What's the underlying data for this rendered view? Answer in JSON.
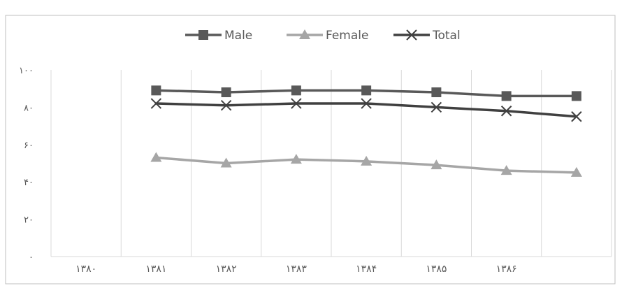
{
  "chart_data": {
    "type": "line",
    "title": "",
    "xlabel": "",
    "ylabel": "",
    "categories": [
      "۱۳۸۰",
      "۱۳۸۱",
      "۱۳۸۲",
      "۱۳۸۳",
      "۱۳۸۴",
      "۱۳۸۵",
      "۱۳۸۶",
      ""
    ],
    "yticks": [
      "۰",
      "۲۰",
      "۴۰",
      "۶۰",
      "۸۰",
      "۱۰۰"
    ],
    "ylim": [
      0,
      100
    ],
    "grid": "vertical",
    "legend_position": "top",
    "series": [
      {
        "name": "Male",
        "marker": "square",
        "color": "#595959",
        "values": [
          null,
          89,
          88,
          89,
          89,
          88,
          86,
          86
        ]
      },
      {
        "name": "Female",
        "marker": "triangle",
        "color": "#a6a6a6",
        "values": [
          null,
          53,
          50,
          52,
          51,
          49,
          46,
          45
        ]
      },
      {
        "name": "Total",
        "marker": "x",
        "color": "#404040",
        "values": [
          null,
          82,
          81,
          82,
          82,
          80,
          78,
          75
        ]
      }
    ]
  }
}
